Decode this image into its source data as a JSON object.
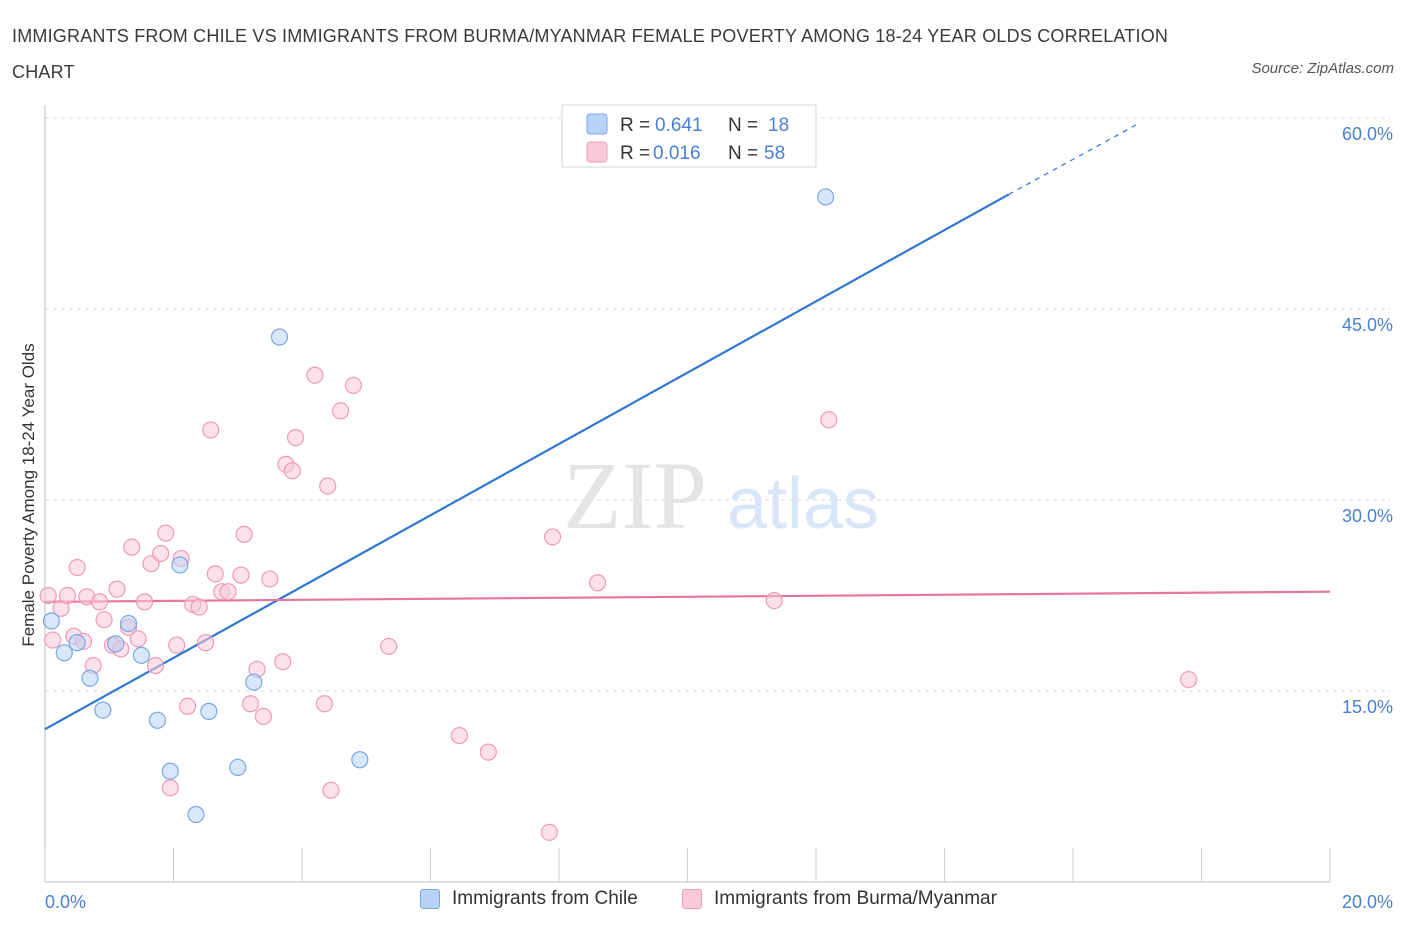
{
  "title": "IMMIGRANTS FROM CHILE VS IMMIGRANTS FROM BURMA/MYANMAR FEMALE POVERTY AMONG 18-24 YEAR OLDS CORRELATION CHART",
  "source": "Source: ZipAtlas.com",
  "watermark": {
    "zip": "ZIP",
    "atlas": "atlas"
  },
  "colors": {
    "blue_fill": "#b9d3f6",
    "blue_stroke": "#7aa7e6",
    "blue_line": "#2f78d1",
    "pink_fill": "#f9c9d8",
    "pink_stroke": "#ee9ab6",
    "pink_line": "#e8759b",
    "axis_label": "#4a7fd1",
    "grid": "#d9d9d9"
  },
  "legend": {
    "r_label": "R = ",
    "n_label": "N = ",
    "rows": [
      {
        "r": "0.641",
        "n": "18"
      },
      {
        "r": "0.016",
        "n": "58"
      }
    ]
  },
  "chart_data": {
    "type": "scatter",
    "xlabel": "",
    "ylabel": "Female Poverty Among 18-24 Year Olds",
    "xlim": [
      0,
      20
    ],
    "ylim": [
      0,
      60
    ],
    "x_tick_labels": [
      "0.0%",
      "20.0%"
    ],
    "y_tick_labels": [
      "15.0%",
      "30.0%",
      "45.0%",
      "60.0%"
    ],
    "y_tick_values": [
      15,
      30,
      45,
      60
    ],
    "series": [
      {
        "name": "Immigrants from Chile",
        "color": "blue",
        "trend": {
          "x0": 0,
          "y0": 12.0,
          "x1": 15.0,
          "y1": 54.0,
          "dash_to_x": 17.0,
          "dash_to_y": 59.5
        },
        "points": [
          [
            0.1,
            20.5
          ],
          [
            0.3,
            18.0
          ],
          [
            0.5,
            18.8
          ],
          [
            0.7,
            16.0
          ],
          [
            0.9,
            13.5
          ],
          [
            1.1,
            18.7
          ],
          [
            1.3,
            20.3
          ],
          [
            1.5,
            17.8
          ],
          [
            1.75,
            12.7
          ],
          [
            1.95,
            8.7
          ],
          [
            2.1,
            24.9
          ],
          [
            2.35,
            5.3
          ],
          [
            2.55,
            13.4
          ],
          [
            3.0,
            9.0
          ],
          [
            3.25,
            15.7
          ],
          [
            3.65,
            42.8
          ],
          [
            4.9,
            9.6
          ],
          [
            12.15,
            53.8
          ]
        ]
      },
      {
        "name": "Immigrants from Burma/Myanmar",
        "color": "pink",
        "trend": {
          "x0": 0,
          "y0": 22.0,
          "x1": 20.0,
          "y1": 22.8
        },
        "points": [
          [
            0.05,
            22.5
          ],
          [
            0.12,
            19.0
          ],
          [
            0.25,
            21.5
          ],
          [
            0.35,
            22.5
          ],
          [
            0.45,
            19.3
          ],
          [
            0.5,
            24.7
          ],
          [
            0.6,
            18.9
          ],
          [
            0.65,
            22.4
          ],
          [
            0.75,
            17.0
          ],
          [
            0.85,
            22.0
          ],
          [
            0.92,
            20.6
          ],
          [
            1.05,
            18.6
          ],
          [
            1.12,
            23.0
          ],
          [
            1.18,
            18.3
          ],
          [
            1.3,
            20.0
          ],
          [
            1.35,
            26.3
          ],
          [
            1.45,
            19.1
          ],
          [
            1.55,
            22.0
          ],
          [
            1.65,
            25.0
          ],
          [
            1.72,
            17.0
          ],
          [
            1.8,
            25.8
          ],
          [
            1.88,
            27.4
          ],
          [
            1.95,
            7.4
          ],
          [
            2.05,
            18.6
          ],
          [
            2.12,
            25.4
          ],
          [
            2.22,
            13.8
          ],
          [
            2.3,
            21.8
          ],
          [
            2.4,
            21.6
          ],
          [
            2.5,
            18.8
          ],
          [
            2.58,
            35.5
          ],
          [
            2.65,
            24.2
          ],
          [
            2.75,
            22.8
          ],
          [
            2.85,
            22.8
          ],
          [
            3.05,
            24.1
          ],
          [
            3.1,
            27.3
          ],
          [
            3.2,
            14.0
          ],
          [
            3.3,
            16.7
          ],
          [
            3.4,
            13.0
          ],
          [
            3.5,
            23.8
          ],
          [
            3.7,
            17.3
          ],
          [
            3.75,
            32.8
          ],
          [
            3.85,
            32.3
          ],
          [
            3.9,
            34.9
          ],
          [
            4.2,
            39.8
          ],
          [
            4.35,
            14.0
          ],
          [
            4.4,
            31.1
          ],
          [
            4.45,
            7.2
          ],
          [
            4.6,
            37.0
          ],
          [
            4.8,
            39.0
          ],
          [
            5.35,
            18.5
          ],
          [
            6.45,
            11.5
          ],
          [
            6.9,
            10.2
          ],
          [
            7.85,
            3.9
          ],
          [
            7.9,
            27.1
          ],
          [
            8.6,
            23.5
          ],
          [
            11.35,
            22.1
          ],
          [
            12.2,
            36.3
          ],
          [
            17.8,
            15.9
          ]
        ]
      }
    ],
    "legend_position": "top-center"
  }
}
